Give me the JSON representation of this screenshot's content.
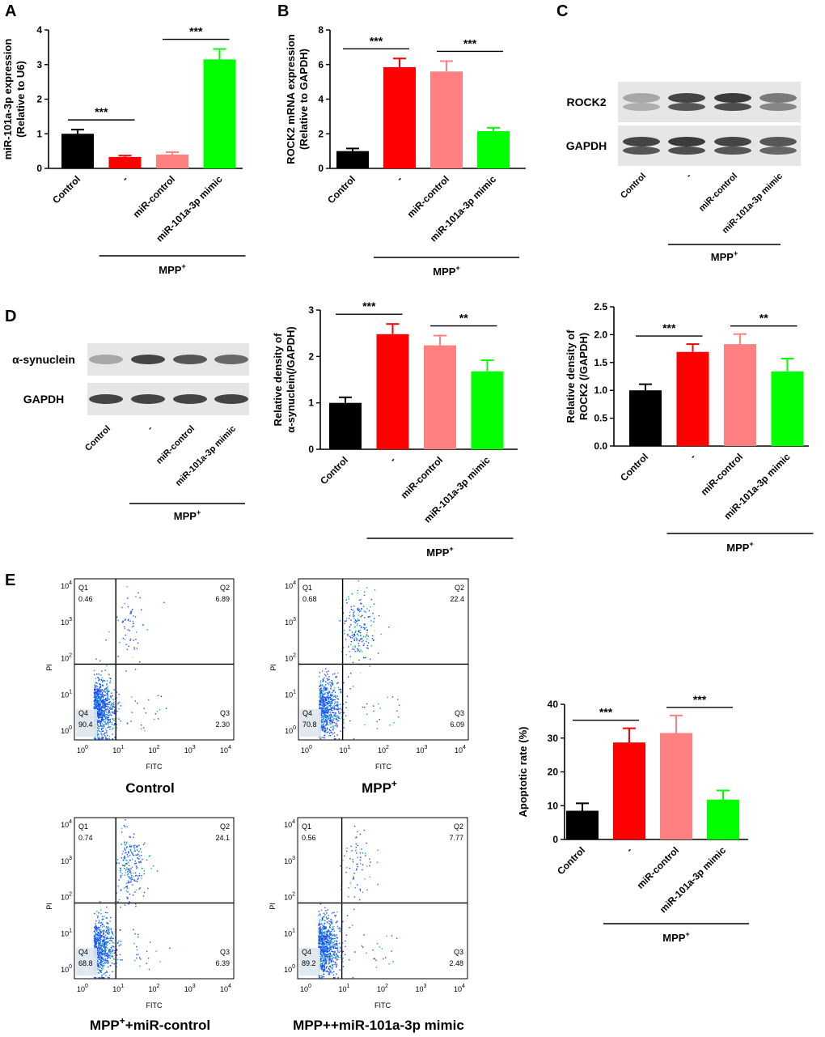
{
  "panel_labels": {
    "A": "A",
    "B": "B",
    "C": "C",
    "D": "D",
    "E": "E"
  },
  "treatment": {
    "base": "MPP",
    "sup": "+"
  },
  "categories": [
    "Control",
    "-",
    "miR-control",
    "miR-101a-3p mimic"
  ],
  "colors": {
    "control": "#000000",
    "mpp": "#ff0000",
    "mir_control": "#ff8080",
    "mimic": "#00ff00",
    "axis": "#000000"
  },
  "chart_data": [
    {
      "id": "A",
      "type": "bar",
      "title": "",
      "ylabel_lines": [
        "miR-101a-3p expression",
        "(Relative to U6)"
      ],
      "categories": [
        "Control",
        "-",
        "miR-control",
        "miR-101a-3p mimic"
      ],
      "values": [
        1.0,
        0.33,
        0.4,
        3.15
      ],
      "errors": [
        0.12,
        0.04,
        0.07,
        0.3
      ],
      "ylim": [
        0,
        4
      ],
      "yticks": [
        "0",
        "1",
        "2",
        "3",
        "4"
      ],
      "significance": [
        {
          "from": 0,
          "to": 1,
          "label": "***"
        },
        {
          "from": 2,
          "to": 3,
          "label": "***"
        }
      ]
    },
    {
      "id": "B",
      "type": "bar",
      "title": "",
      "ylabel_lines": [
        "ROCK2 mRNA expression",
        "(Relative to GAPDH)"
      ],
      "categories": [
        "Control",
        "-",
        "miR-control",
        "miR-101a-3p mimic"
      ],
      "values": [
        1.0,
        5.85,
        5.6,
        2.15
      ],
      "errors": [
        0.15,
        0.5,
        0.6,
        0.2
      ],
      "ylim": [
        0,
        8
      ],
      "yticks": [
        "0",
        "2",
        "4",
        "6",
        "8"
      ],
      "significance": [
        {
          "from": 0,
          "to": 1,
          "label": "***"
        },
        {
          "from": 2,
          "to": 3,
          "label": "***"
        }
      ]
    },
    {
      "id": "D1",
      "type": "bar",
      "title": "",
      "ylabel_lines": [
        "Relative density of",
        "α-synuclein(/GAPDH)"
      ],
      "categories": [
        "Control",
        "-",
        "miR-control",
        "miR-101a-3p mimic"
      ],
      "values": [
        1.0,
        2.48,
        2.24,
        1.68
      ],
      "errors": [
        0.12,
        0.22,
        0.21,
        0.24
      ],
      "ylim": [
        0,
        3
      ],
      "yticks": [
        "0",
        "1",
        "2",
        "3"
      ],
      "significance": [
        {
          "from": 0,
          "to": 1,
          "label": "***"
        },
        {
          "from": 2,
          "to": 3,
          "label": "**"
        }
      ]
    },
    {
      "id": "D2",
      "type": "bar",
      "title": "",
      "ylabel_lines": [
        "Relative density of",
        "ROCK2 (/GAPDH)"
      ],
      "categories": [
        "Control",
        "-",
        "miR-control",
        "miR-101a-3p mimic"
      ],
      "values": [
        1.0,
        1.69,
        1.83,
        1.34
      ],
      "errors": [
        0.11,
        0.14,
        0.18,
        0.23
      ],
      "ylim": [
        0,
        2.5
      ],
      "yticks": [
        "0.0",
        "0.5",
        "1.0",
        "1.5",
        "2.0",
        "2.5"
      ],
      "significance": [
        {
          "from": 0,
          "to": 1,
          "label": "***"
        },
        {
          "from": 2,
          "to": 3,
          "label": "**"
        }
      ]
    },
    {
      "id": "E",
      "type": "bar",
      "title": "",
      "ylabel_lines": [
        "Apoptotic rate (%)"
      ],
      "categories": [
        "Control",
        "-",
        "miR-control",
        "miR-101a-3p mimic"
      ],
      "values": [
        8.5,
        28.7,
        31.5,
        11.8
      ],
      "errors": [
        2.2,
        4.2,
        5.2,
        2.7
      ],
      "ylim": [
        0,
        40
      ],
      "yticks": [
        "0",
        "10",
        "20",
        "30",
        "40"
      ],
      "significance": [
        {
          "from": 0,
          "to": 1,
          "label": "***"
        },
        {
          "from": 2,
          "to": 3,
          "label": "***"
        }
      ]
    }
  ],
  "blots": {
    "C": {
      "rows": [
        "ROCK2",
        "GAPDH"
      ],
      "lanes": [
        "Control",
        "-",
        "miR-control",
        "miR-101a-3p mimic"
      ],
      "intensity": [
        [
          0.3,
          0.85,
          0.9,
          0.55
        ],
        [
          0.85,
          0.9,
          0.85,
          0.75
        ]
      ]
    },
    "D": {
      "rows": [
        "α-synuclein",
        "GAPDH"
      ],
      "lanes": [
        "Control",
        "-",
        "miR-control",
        "miR-101a-3p mimic"
      ],
      "intensity": [
        [
          0.3,
          0.85,
          0.75,
          0.65
        ],
        [
          0.85,
          0.85,
          0.85,
          0.85
        ]
      ]
    }
  },
  "flow": {
    "xlabel": "FITC",
    "ylabel": "PI",
    "axis_ticks": [
      "10",
      "10",
      "10",
      "10",
      "10"
    ],
    "tick_exponents": [
      "0",
      "1",
      "2",
      "3",
      "4"
    ],
    "plots": [
      {
        "id": "ctrl",
        "q1": "0.46",
        "q2": "6.89",
        "q3": "2.30",
        "q4": "90.4",
        "caption_main": "Control",
        "caption_sup": "",
        "caption_rest": ""
      },
      {
        "id": "mpp",
        "q1": "0.68",
        "q2": "22.4",
        "q3": "6.09",
        "q4": "70.8",
        "caption_main": "MPP",
        "caption_sup": "+",
        "caption_rest": ""
      },
      {
        "id": "mppc",
        "q1": "0.74",
        "q2": "24.1",
        "q3": "6.39",
        "q4": "68.8",
        "caption_main": "MPP",
        "caption_sup": "+",
        "caption_rest": "+miR-control"
      },
      {
        "id": "mppm",
        "q1": "0.56",
        "q2": "7.77",
        "q3": "2.48",
        "q4": "89.2",
        "caption_main": "MPP++miR-101a-3p mimic",
        "caption_sup": "",
        "caption_rest": ""
      }
    ],
    "quadrant_names": [
      "Q1",
      "Q2",
      "Q3",
      "Q4"
    ]
  }
}
